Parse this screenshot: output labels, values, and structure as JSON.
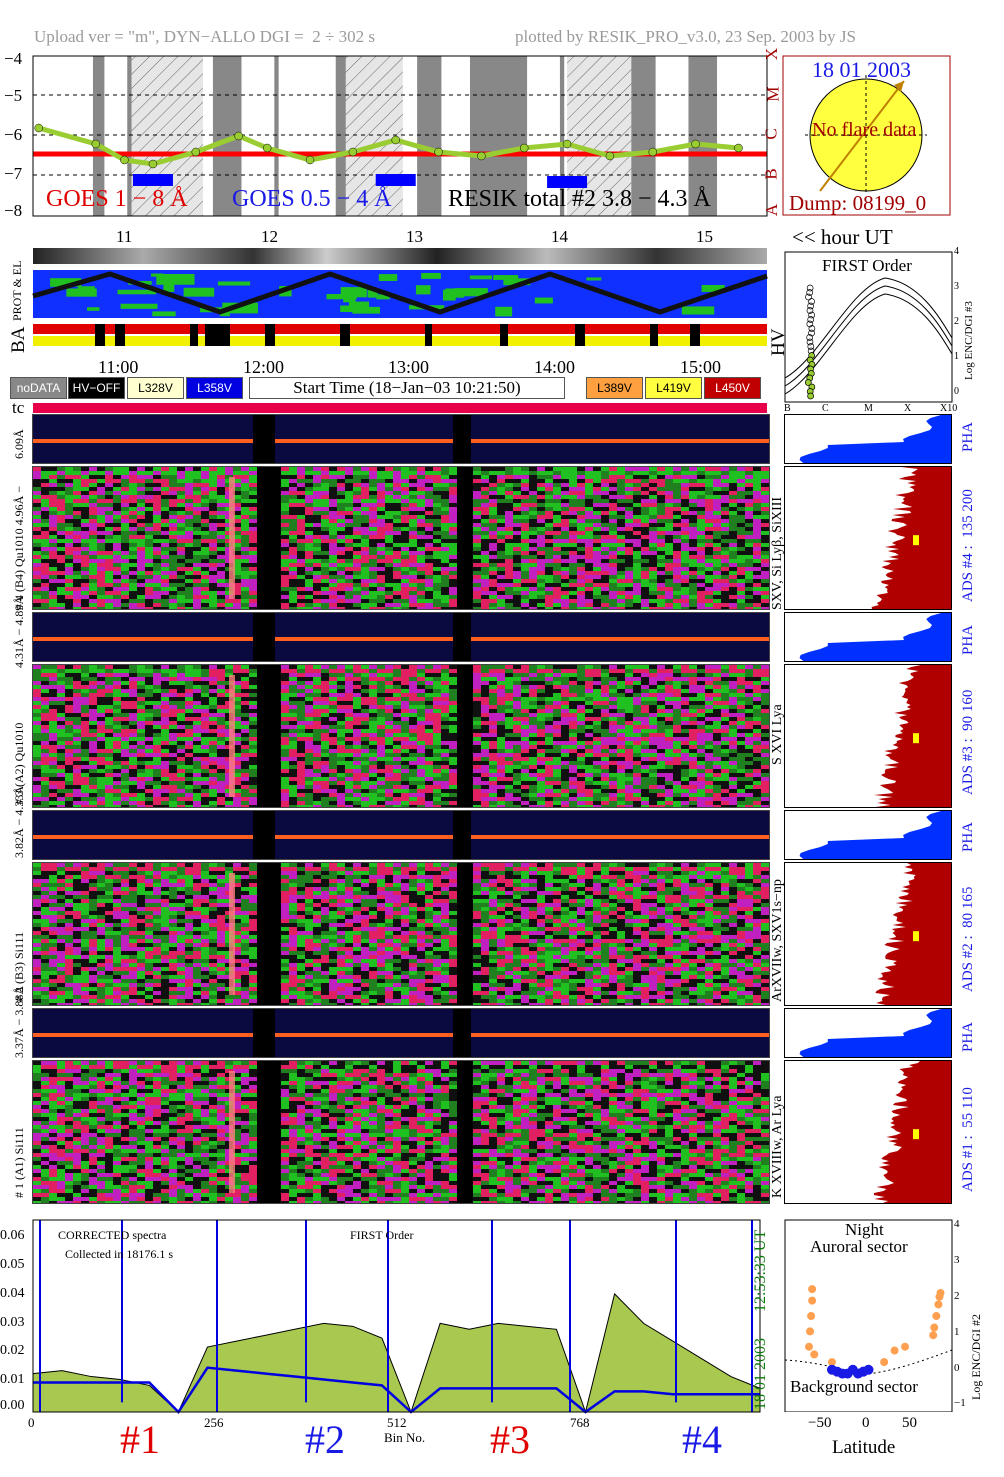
{
  "header": {
    "upload": "Upload ver = \"m\", DYN−ALLO DGI =",
    "dgi": "2 ÷ 302 s",
    "plotted": "plotted by RESIK_PRO_v3.0, 23 Sep. 2003 by JS"
  },
  "goes": {
    "y_ticks": [
      "−4",
      "−5",
      "−6",
      "−7",
      "−8"
    ],
    "class_letters": [
      "X",
      "M",
      "C",
      "B",
      "A"
    ],
    "label_1_8": "GOES 1 − 8 Å",
    "label_05_4": "GOES 0.5 − 4 Å",
    "label_resik": "RESIK total #2  3.8 − 4.3 Å",
    "hours": [
      "11",
      "12",
      "13",
      "14",
      "15"
    ],
    "hour_note": "<< hour UT",
    "colors": {
      "goes_long": "#ff0000",
      "goes_short": "#0000ff",
      "resik": "#000000",
      "night": "#888888",
      "saa": "#cccccc"
    }
  },
  "sun": {
    "date": "18 01 2003",
    "note": "No flare data",
    "dump": "Dump: 08199_0"
  },
  "status_rows": {
    "prot_el": "PROT & EL",
    "ba": "BA",
    "hv": "HV"
  },
  "first_order": {
    "title": "FIRST Order",
    "ylabel": "Log ENC/DGI #3",
    "y_ticks": [
      "0",
      "1",
      "2",
      "3",
      "4"
    ],
    "x_ticks": [
      "B",
      "C",
      "M",
      "X",
      "X10"
    ]
  },
  "legend": {
    "times": [
      "11:00",
      "12:00",
      "13:00",
      "14:00",
      "15:00"
    ],
    "nodata": "noDATA",
    "hvoff": "HV−OFF",
    "v328": "L328V",
    "v358": "L358V",
    "start": "Start Time (18−Jan−03 10:21:50)",
    "v389": "L389V",
    "v419": "L419V",
    "v450": "L450V",
    "tc": "tc"
  },
  "channels": [
    {
      "pha_label": "6.09Å",
      "main_label": "# 4 (B4) Qu1010 4.96Å −",
      "line_label": "SXV, Si Lyβ, SiXIII",
      "ads": "ADS #4 :",
      "ads_vals": "135 200",
      "pha": "PHA"
    },
    {
      "pha_label": "4.31Å − 4.89Å",
      "main_label": "# 3 (A2) Qu1010",
      "line_label": "S XVI Lya",
      "ads": "ADS #3 :",
      "ads_vals": "90 160",
      "pha": "PHA"
    },
    {
      "pha_label": "3.82Å − 4.33Å",
      "main_label": "# 2 (B3) Si111",
      "line_label": "ArXVIIw, SXV1s−np",
      "ads": "ADS #2 :",
      "ads_vals": "80 165",
      "pha": "PHA"
    },
    {
      "pha_label": "3.37Å − 3.88Å",
      "main_label": "# 1 (A1) Si111",
      "line_label": "K XVIIIw, Ar Lya",
      "ads": "ADS #1 :",
      "ads_vals": "55 110",
      "pha": "PHA"
    }
  ],
  "spectra": {
    "title1": "CORRECTED spectra",
    "title2": "Collected in 18176.1 s",
    "order": "FIRST Order",
    "xlabel": "Bin No.",
    "x_ticks": [
      "0",
      "256",
      "512",
      "768"
    ],
    "y_ticks": [
      "0.00",
      "0.01",
      "0.02",
      "0.03",
      "0.04",
      "0.05",
      "0.06"
    ],
    "side_time": "12:53:33 UT",
    "side_date": "18 01 2003",
    "channel_labels": [
      "#1",
      "#2",
      "#3",
      "#4"
    ]
  },
  "latitude": {
    "night": "Night",
    "auroral": "Auroral sector",
    "background": "Background sector",
    "xlabel": "Latitude",
    "x_ticks": [
      "−50",
      "0",
      "50"
    ],
    "ylabel": "Log ENC/DGI #2",
    "y_ticks": [
      "−1",
      "0",
      "1",
      "2",
      "3",
      "4"
    ]
  },
  "chart_data": [
    {
      "type": "line",
      "title": "",
      "x_hours": [
        10.4,
        10.8,
        11.0,
        11.2,
        11.5,
        11.8,
        12.0,
        12.3,
        12.6,
        12.9,
        13.2,
        13.5,
        13.8,
        14.1,
        14.4,
        14.7,
        15.0,
        15.3
      ],
      "series": [
        {
          "name": "GOES 1 − 8 Å",
          "values": [
            -6.45,
            -6.45,
            -6.45,
            -6.45,
            -6.45,
            -6.45,
            -6.45,
            -6.45,
            -6.45,
            -6.45,
            -6.45,
            -6.45,
            -6.45,
            -6.45,
            -6.45,
            -6.45,
            -6.45,
            -6.45
          ]
        },
        {
          "name": "GOES 0.5 − 4 Å",
          "values": [
            null,
            null,
            null,
            -7.1,
            null,
            null,
            null,
            null,
            null,
            -7.1,
            null,
            null,
            null,
            -7.15,
            null,
            null,
            null,
            null
          ]
        },
        {
          "name": "RESIK total #2  3.8 − 4.3 Å",
          "values": [
            -5.8,
            -6.2,
            -6.6,
            -6.7,
            -6.4,
            -6.0,
            -6.3,
            -6.6,
            -6.4,
            -6.1,
            -6.4,
            -6.5,
            -6.3,
            -6.2,
            -6.5,
            -6.4,
            -6.2,
            -6.3
          ]
        }
      ],
      "ylim": [
        -8,
        -4
      ],
      "xlim": [
        10.36,
        15.5
      ]
    },
    {
      "type": "line",
      "title": "CORRECTED spectra",
      "xlabel": "Bin No.",
      "xlim": [
        0,
        1024
      ],
      "ylim": [
        0,
        0.065
      ],
      "series": [
        {
          "name": "corrected",
          "values": [
            0.013,
            0.014,
            0.012,
            0.011,
            0.009,
            0.0,
            0.022,
            0.024,
            0.026,
            0.028,
            0.03,
            0.029,
            0.025,
            0.0,
            0.03,
            0.028,
            0.03,
            0.029,
            0.028,
            0.0,
            0.04,
            0.03,
            0.024,
            0.018,
            0.012,
            0.008
          ]
        },
        {
          "name": "background",
          "values": [
            0.01,
            0.01,
            0.01,
            0.01,
            0.01,
            0.0,
            0.015,
            0.014,
            0.013,
            0.012,
            0.011,
            0.01,
            0.009,
            0.0,
            0.008,
            0.008,
            0.008,
            0.008,
            0.008,
            0.0,
            0.007,
            0.007,
            0.006,
            0.006,
            0.006,
            0.006
          ]
        }
      ]
    },
    {
      "type": "scatter",
      "title": "",
      "xlabel": "Latitude",
      "ylabel": "Log ENC/DGI #2",
      "xlim": [
        -75,
        85
      ],
      "ylim": [
        -1,
        4
      ],
      "series": [
        {
          "name": "auroral",
          "x": [
            -52,
            -51,
            -50,
            -49,
            -49,
            -47,
            -30,
            20,
            30,
            40,
            67,
            68,
            70,
            72,
            73,
            74
          ],
          "y": [
            0.7,
            1.1,
            1.5,
            1.9,
            2.2,
            0.5,
            0.3,
            0.3,
            0.6,
            0.7,
            1.0,
            1.2,
            1.5,
            1.8,
            2.0,
            2.1
          ]
        },
        {
          "name": "background",
          "x": [
            -30,
            -25,
            -20,
            -15,
            -10,
            -5,
            0,
            5
          ],
          "y": [
            0.1,
            0.05,
            0.0,
            0.0,
            0.1,
            0.0,
            0.05,
            0.1
          ]
        }
      ]
    }
  ]
}
